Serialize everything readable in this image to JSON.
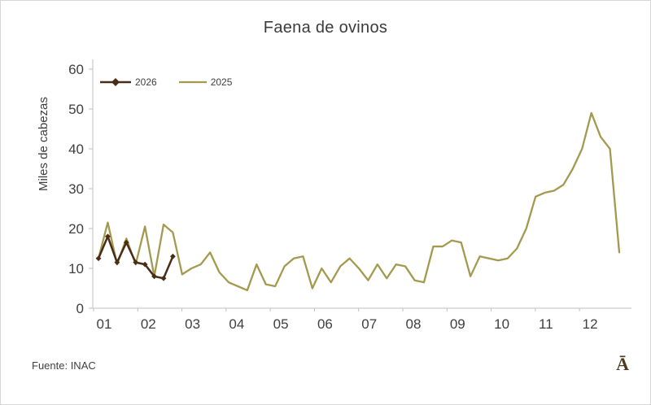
{
  "title": "Faena de ovinos",
  "y_axis_label": "Miles de cabezas",
  "source": "Fuente: INAC",
  "corner_glyph": "Ā",
  "colors": {
    "series_2026": "#4a2c17",
    "series_2025": "#a39a4f",
    "axis": "#bfbfbf",
    "text": "#3f3f3f"
  },
  "legend": [
    {
      "label": "2026"
    },
    {
      "label": "2025"
    }
  ],
  "chart_data": {
    "type": "line",
    "title": "Faena de ovinos",
    "xlabel": "",
    "ylabel": "Miles de cabezas",
    "ylim": [
      0,
      60
    ],
    "y_ticks": [
      0,
      10,
      20,
      30,
      40,
      50,
      60
    ],
    "x_tick_labels": [
      "01",
      "02",
      "03",
      "04",
      "05",
      "06",
      "07",
      "08",
      "09",
      "10",
      "11",
      "12"
    ],
    "x_unit": "weeks across months 01-12",
    "grid": false,
    "legend_position": "top-left-inside",
    "series": [
      {
        "name": "2026",
        "marker": "diamond",
        "values": [
          12.5,
          18,
          11.5,
          16.5,
          11.5,
          11,
          8,
          7.5,
          13
        ]
      },
      {
        "name": "2025",
        "marker": "none",
        "values": [
          12.5,
          21.5,
          11,
          17.5,
          11,
          20.5,
          8,
          21,
          19,
          8.5,
          10,
          11,
          14,
          9,
          6.5,
          5.5,
          4.5,
          11,
          6,
          5.5,
          10.5,
          12.5,
          13,
          5,
          10,
          6.5,
          10.5,
          12.5,
          10,
          7,
          11,
          7.5,
          11,
          10.5,
          7,
          6.5,
          15.5,
          15.5,
          17,
          16.5,
          8,
          13,
          12.5,
          12,
          12.5,
          15,
          20,
          28,
          29,
          29.5,
          31,
          35,
          40,
          49,
          43,
          40,
          14
        ]
      }
    ]
  }
}
